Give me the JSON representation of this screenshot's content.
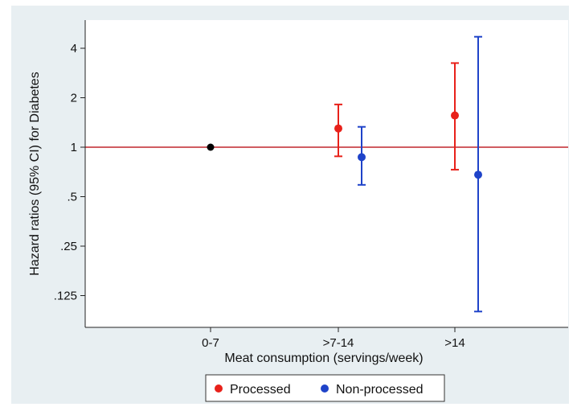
{
  "chart_data": {
    "type": "scatter",
    "title": "",
    "xlabel": "Meat consumption (servings/week)",
    "ylabel": "Hazard ratios (95% CI) for Diabetes",
    "y_scale": "log2",
    "ylim": [
      0.09,
      5.0
    ],
    "categories": [
      "0-7",
      ">7-14",
      ">14"
    ],
    "y_ticks": [
      0.125,
      0.25,
      0.5,
      1,
      2,
      4
    ],
    "y_tick_labels": [
      ".125",
      ".25",
      ".5",
      "1",
      "2",
      "4"
    ],
    "reference_line": 1,
    "reference": {
      "category": "0-7",
      "value": 1,
      "color": "#000000"
    },
    "series": [
      {
        "name": "Processed",
        "color": "#e8211a",
        "points": [
          {
            "category": ">7-14",
            "value": 1.3,
            "lower": 0.88,
            "upper": 1.82
          },
          {
            "category": ">14",
            "value": 1.56,
            "lower": 0.73,
            "upper": 3.25
          }
        ]
      },
      {
        "name": "Non-processed",
        "color": "#1f43c9",
        "points": [
          {
            "category": ">7-14",
            "value": 0.87,
            "lower": 0.59,
            "upper": 1.33
          },
          {
            "category": ">14",
            "value": 0.68,
            "lower": 0.1,
            "upper": 4.7
          }
        ]
      }
    ],
    "reference_line_color": "#c0272d",
    "legend_position": "bottom",
    "grid": false
  }
}
